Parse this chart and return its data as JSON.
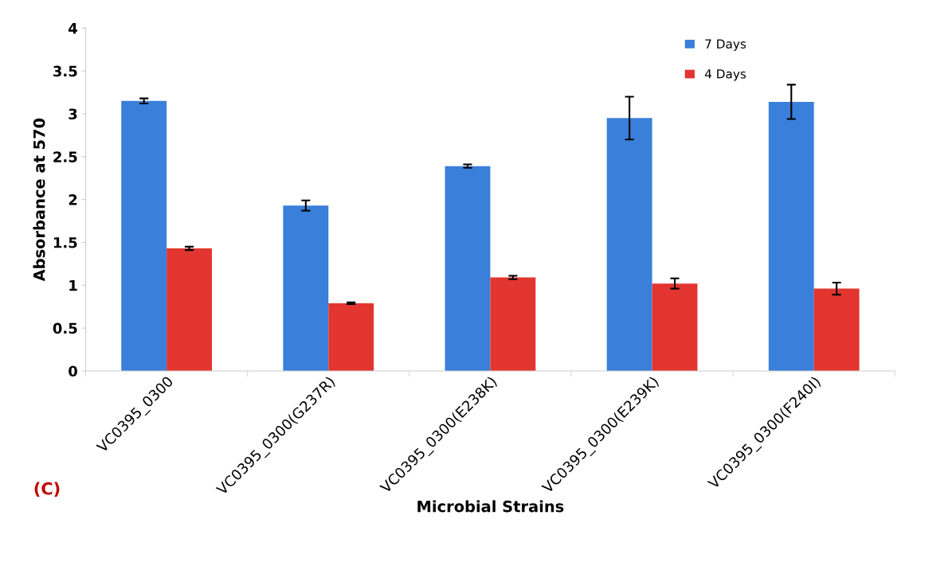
{
  "chart_data": {
    "type": "bar",
    "categories": [
      "VC0395_0300",
      "VC0395_0300(G237R)",
      "VC0395_0300(E238K)",
      "VC0395_0300(E239K)",
      "VC0395_0300(F240I)"
    ],
    "series": [
      {
        "name": "7 Days",
        "color": "#3a7fd9",
        "values": [
          3.15,
          1.93,
          2.39,
          2.95,
          3.14
        ],
        "errors": [
          0.03,
          0.06,
          0.02,
          0.25,
          0.2
        ]
      },
      {
        "name": "4 Days",
        "color": "#e2352f",
        "values": [
          1.43,
          0.79,
          1.09,
          1.02,
          0.96
        ],
        "errors": [
          0.02,
          0.01,
          0.02,
          0.06,
          0.07
        ]
      }
    ],
    "xlabel": "Microbial Strains",
    "ylabel": "Absorbance at 570",
    "ylim": [
      0,
      4
    ],
    "yticks": [
      0,
      0.5,
      1,
      1.5,
      2,
      2.5,
      3,
      3.5,
      4
    ],
    "grid": false,
    "legend": "top right",
    "annotations": [
      "(C)"
    ]
  }
}
